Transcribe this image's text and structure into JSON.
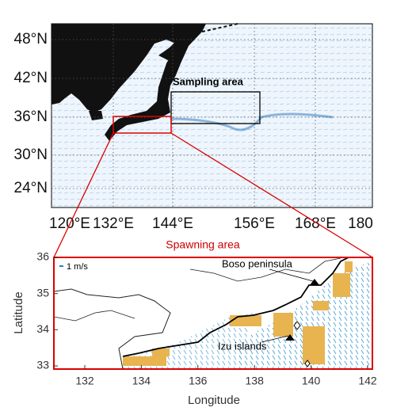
{
  "overview_map": {
    "lat_labels": [
      "48°N",
      "42°N",
      "36°N",
      "30°N",
      "24°N"
    ],
    "lon_labels": [
      "120°E",
      "132°E",
      "144°E",
      "156°E",
      "168°E",
      "180"
    ],
    "sampling_label": "Sampling area"
  },
  "spawning_label": "Spawning area",
  "inset_map": {
    "xlabel": "Longitude",
    "ylabel": "Latitude",
    "xticks": [
      132,
      134,
      136,
      138,
      140,
      142
    ],
    "yticks": [
      33,
      34,
      35,
      36
    ],
    "legend": "1 m/s",
    "annotations": [
      "Boso peninsula",
      "Izu islands"
    ]
  }
}
